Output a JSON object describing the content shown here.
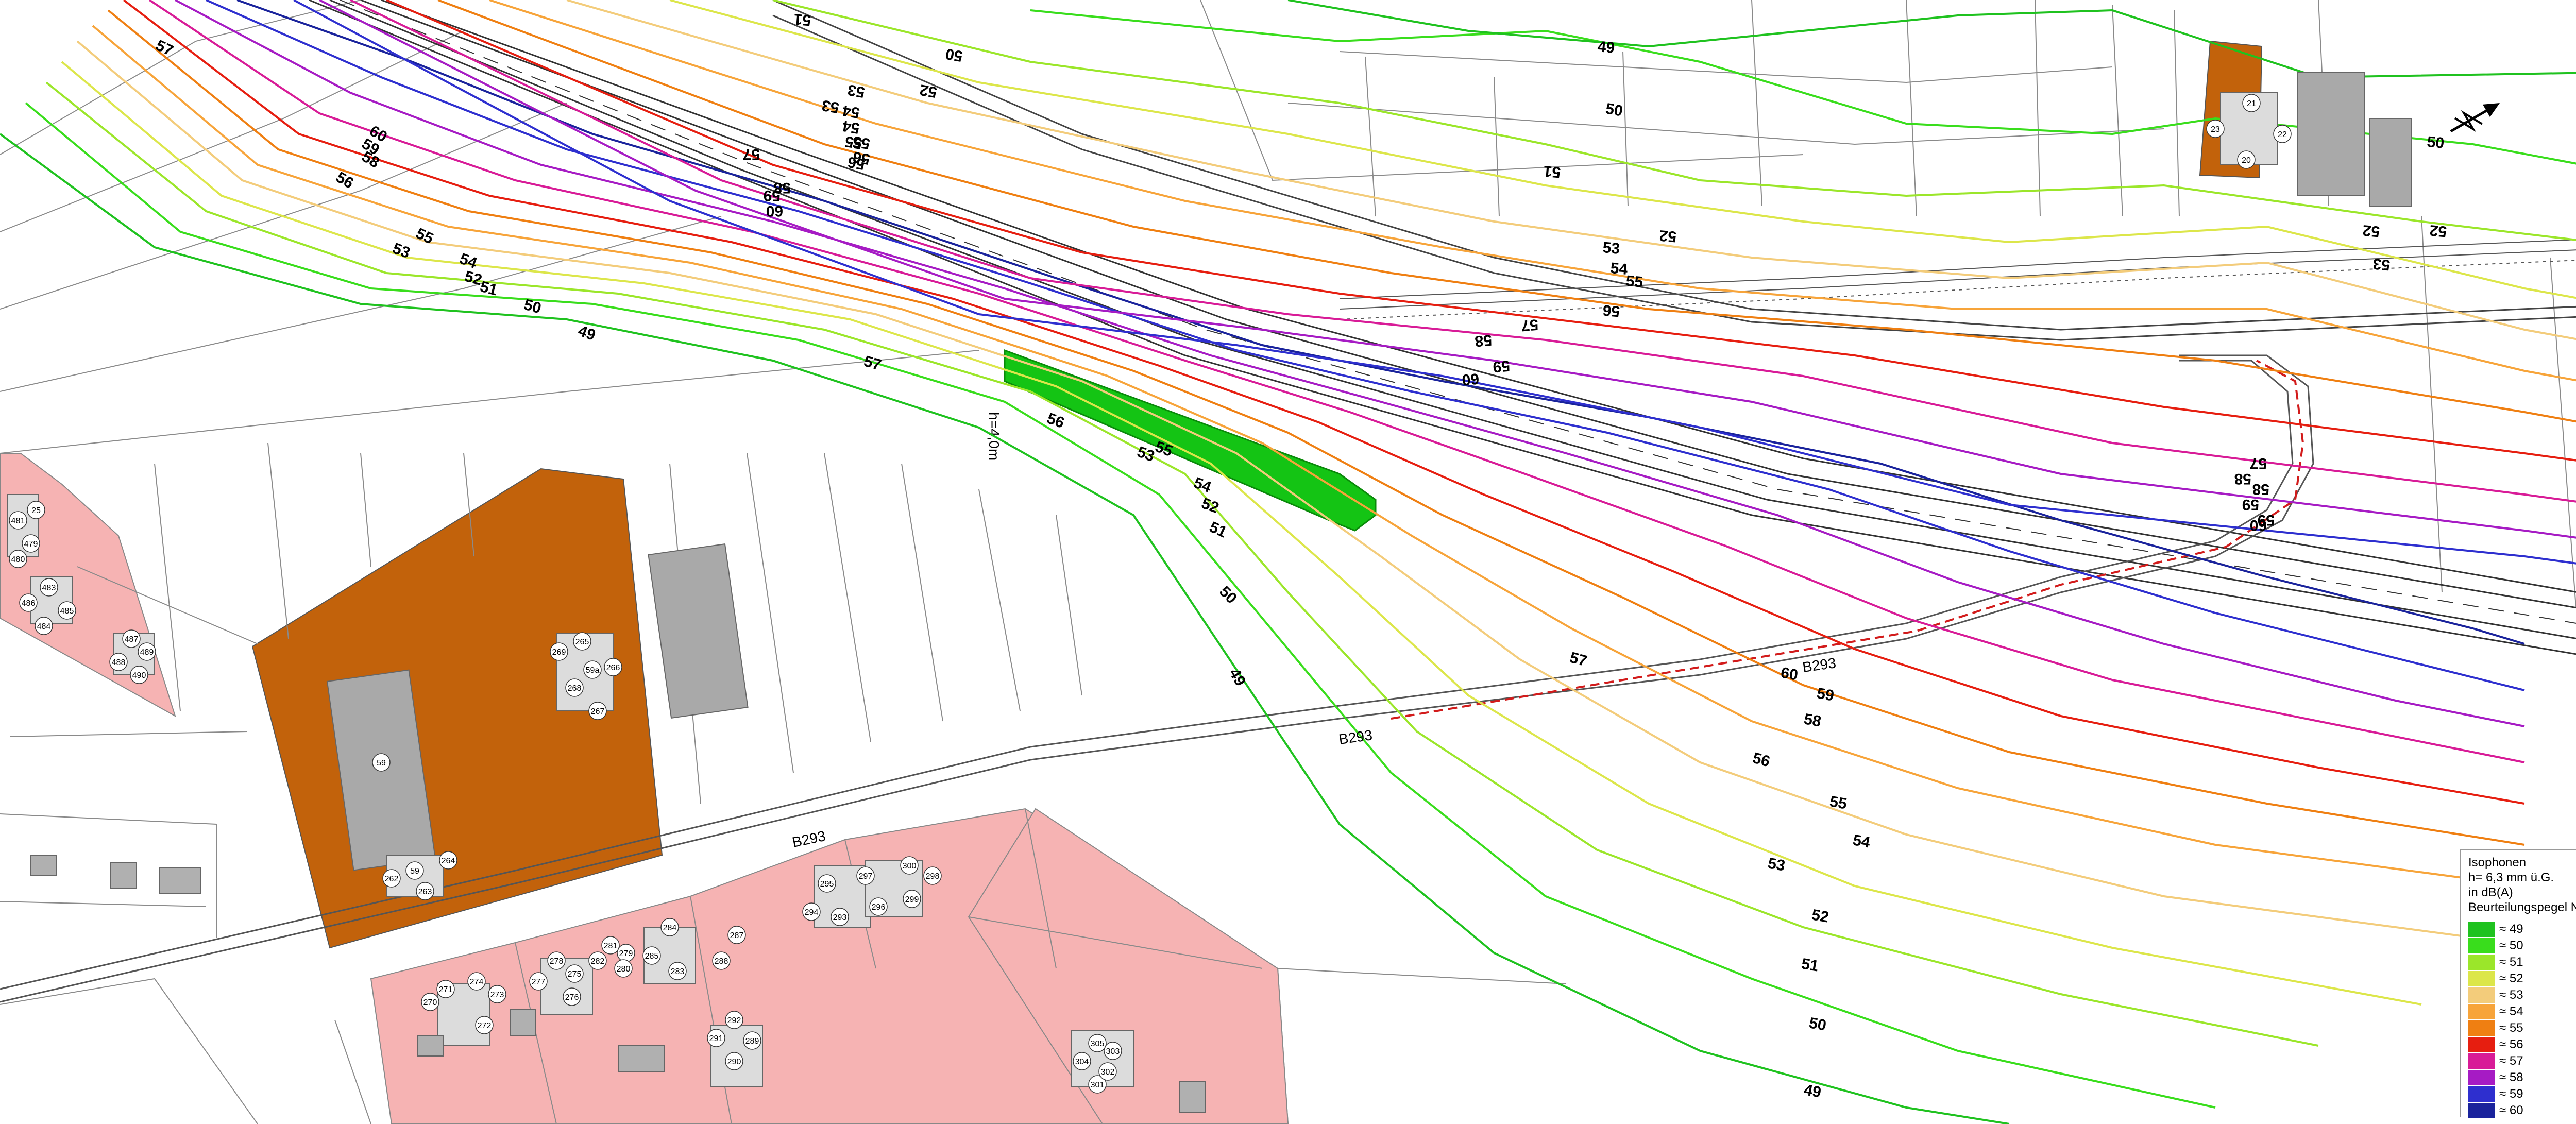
{
  "isophone_colors": {
    "49": "#1fc21f",
    "50": "#39dd1c",
    "51": "#9be62a",
    "52": "#dce64a",
    "53": "#f3cc7b",
    "54": "#f7a43a",
    "55": "#ef7f12",
    "56": "#e61e10",
    "57": "#d81b97",
    "58": "#a61bc4",
    "59": "#2e2fcf",
    "60": "#1a239c"
  },
  "residential_color": "#f6b3b3",
  "commercial_color": "#c2620b",
  "barrier_color": "#14c414",
  "legend": {
    "title": "Isophonen",
    "height_line": "h= 6,3 mm ü.G.",
    "unit_line": "in dB(A)",
    "subtitle": "Beurteilungspegel Nacht",
    "entries": [
      {
        "label": "≈ 49",
        "color": "#1fc21f"
      },
      {
        "label": "≈ 50",
        "color": "#39dd1c"
      },
      {
        "label": "≈ 51",
        "color": "#9be62a"
      },
      {
        "label": "≈ 52",
        "color": "#dce64a"
      },
      {
        "label": "≈ 53",
        "color": "#f3cc7b"
      },
      {
        "label": "≈ 54",
        "color": "#f7a43a"
      },
      {
        "label": "≈ 55",
        "color": "#ef7f12"
      },
      {
        "label": "≈ 56",
        "color": "#e61e10"
      },
      {
        "label": "≈ 57",
        "color": "#d81b97"
      },
      {
        "label": "≈ 58",
        "color": "#a61bc4"
      },
      {
        "label": "≈ 59",
        "color": "#2e2fcf"
      },
      {
        "label": "≈ 60",
        "color": "#1a239c"
      }
    ]
  },
  "road_labels": {
    "b293_main": "B293",
    "b293_bridge": "B293",
    "b293_ramp": "B293"
  },
  "barrier_label": "h=4,0m",
  "building_numbers": {
    "b265": "265",
    "b266": "266",
    "b267": "267",
    "b268": "268",
    "b269": "269",
    "b59a": "59a",
    "b59": "59",
    "b59b": "59",
    "b262": "262",
    "b263": "263",
    "b264": "264",
    "b20": "20",
    "b21": "21",
    "b22": "22",
    "b23": "23",
    "b481": "481",
    "b479": "479",
    "b480": "480",
    "b483": "483",
    "b484": "484",
    "b485": "485",
    "b486": "486",
    "b487": "487",
    "b488": "488",
    "b489": "489",
    "b490": "490",
    "b25": "25",
    "b271": "271",
    "b270": "270",
    "b272": "272",
    "b273": "273",
    "b274": "274",
    "b275": "275",
    "b276": "276",
    "b277": "277",
    "b278": "278",
    "b279": "279",
    "b280": "280",
    "b281": "281",
    "b282": "282",
    "b283": "283",
    "b284": "284",
    "b285": "285",
    "b287": "287",
    "b288": "288",
    "b289": "289",
    "b290": "290",
    "b291": "291",
    "b292": "292",
    "b293": "293",
    "b294": "294",
    "b295": "295",
    "b296": "296",
    "b297": "297",
    "b298": "298",
    "b299": "299",
    "b300": "300",
    "b301": "301",
    "b302": "302",
    "b303": "303",
    "b304": "304",
    "b305": "305"
  },
  "contour_labels": {
    "tl57": "57",
    "tl60": "60",
    "tl59": "59",
    "tl58": "58",
    "tl56": "56",
    "tl55": "55",
    "tl54": "54",
    "tl53": "53",
    "tl52": "52",
    "tl51": "51",
    "tl50": "50",
    "tl49": "49",
    "m57": "57",
    "m56": "56",
    "m55": "55",
    "m54": "54",
    "m53": "53",
    "m52": "52",
    "m51": "51",
    "m50": "50",
    "m49": "49",
    "r57": "57",
    "r56": "56",
    "r55": "55",
    "r54": "54",
    "r53": "53",
    "r52": "52",
    "r51": "51",
    "r50": "50",
    "r49": "49",
    "r59": "59",
    "r58": "58",
    "r60": "60",
    "t50a": "50",
    "t49": "49",
    "t50b": "50",
    "t51": "51",
    "t52a": "52",
    "t53": "53",
    "t54": "54",
    "t55": "55",
    "t56": "56",
    "t57": "57",
    "t58": "58",
    "t59": "59",
    "t60": "60",
    "t52b": "52",
    "t51b": "51",
    "u57": "57",
    "u58": "58",
    "u59": "59",
    "u60": "60",
    "u53": "53",
    "u54": "54",
    "u55": "55",
    "u56": "56",
    "e52": "52",
    "e53": "53",
    "e54": "54",
    "e55": "55",
    "e56": "56",
    "e57": "57",
    "e58": "58",
    "e59": "59",
    "e50": "50",
    "e52b": "52",
    "e53b": "53",
    "e58b": "58",
    "e59b": "59",
    "e60b": "60"
  }
}
